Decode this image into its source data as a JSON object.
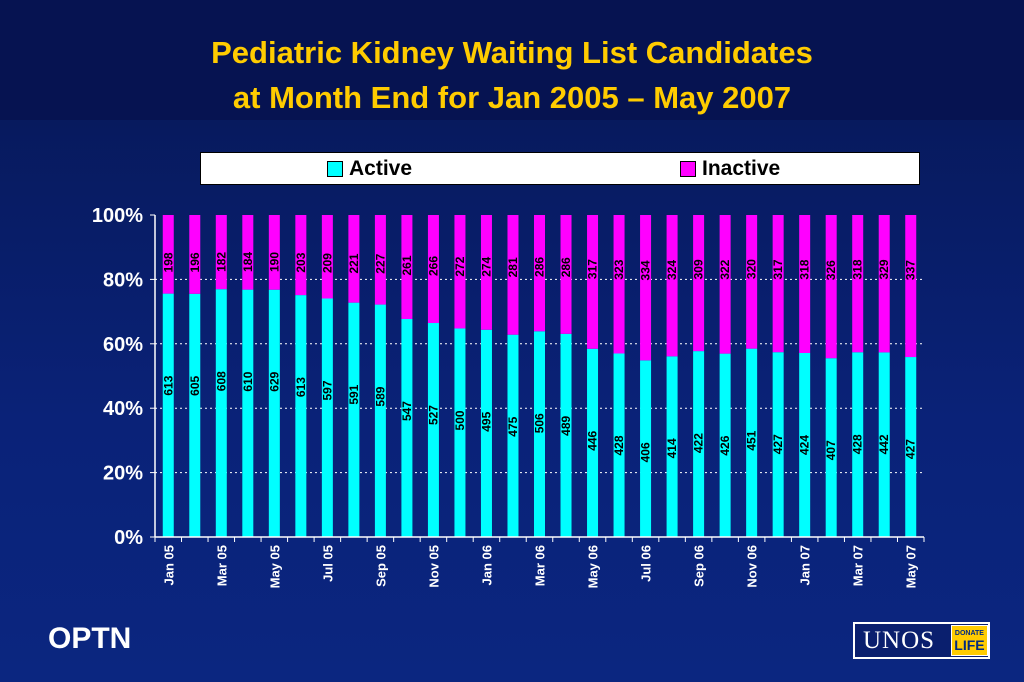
{
  "title": {
    "line1": "Pediatric Kidney Waiting List Candidates",
    "line2": "at Month End for Jan 2005 – May 2007"
  },
  "legend": {
    "active_label": "Active",
    "inactive_label": "Inactive"
  },
  "colors": {
    "active": "#00ffff",
    "inactive": "#ff00ff",
    "title": "#ffcc00",
    "axis_text": "#ffffff",
    "grid": "#ffffff"
  },
  "footer": {
    "left_text": "OPTN",
    "logo_text": "UNOS",
    "badge_line1": "DONATE",
    "badge_line2": "LIFE"
  },
  "chart_data": {
    "type": "bar",
    "stacking": "percent",
    "yticks": [
      "0%",
      "20%",
      "40%",
      "60%",
      "80%",
      "100%"
    ],
    "ylim": [
      0,
      100
    ],
    "grid": true,
    "legend_position": "top",
    "categories": [
      "Jan 05",
      "Feb 05",
      "Mar 05",
      "Apr 05",
      "May 05",
      "Jun 05",
      "Jul 05",
      "Aug 05",
      "Sep 05",
      "Oct 05",
      "Nov 05",
      "Dec 05",
      "Jan 06",
      "Feb 06",
      "Mar 06",
      "Apr 06",
      "May 06",
      "Jun 06",
      "Jul 06",
      "Aug 06",
      "Sep 06",
      "Oct 06",
      "Nov 06",
      "Dec 06",
      "Jan 07",
      "Feb 07",
      "Mar 07",
      "Apr 07",
      "May 07"
    ],
    "visible_xtick_labels": [
      "Jan 05",
      "",
      "Mar 05",
      "",
      "May 05",
      "",
      "Jul 05",
      "",
      "Sep 05",
      "",
      "Nov 05",
      "",
      "Jan 06",
      "",
      "Mar 06",
      "",
      "May 06",
      "",
      "Jul 06",
      "",
      "Sep 06",
      "",
      "Nov 06",
      "",
      "Jan 07",
      "",
      "Mar 07",
      "",
      "May 07"
    ],
    "series": [
      {
        "name": "Active",
        "values": [
          613,
          605,
          608,
          610,
          629,
          613,
          597,
          591,
          589,
          547,
          527,
          500,
          495,
          475,
          506,
          489,
          446,
          428,
          406,
          414,
          422,
          426,
          451,
          427,
          424,
          407,
          428,
          442,
          427
        ]
      },
      {
        "name": "Inactive",
        "values": [
          198,
          196,
          182,
          184,
          190,
          203,
          209,
          221,
          227,
          261,
          266,
          272,
          274,
          281,
          286,
          286,
          317,
          323,
          334,
          324,
          309,
          322,
          320,
          317,
          318,
          326,
          318,
          329,
          337
        ]
      }
    ]
  }
}
